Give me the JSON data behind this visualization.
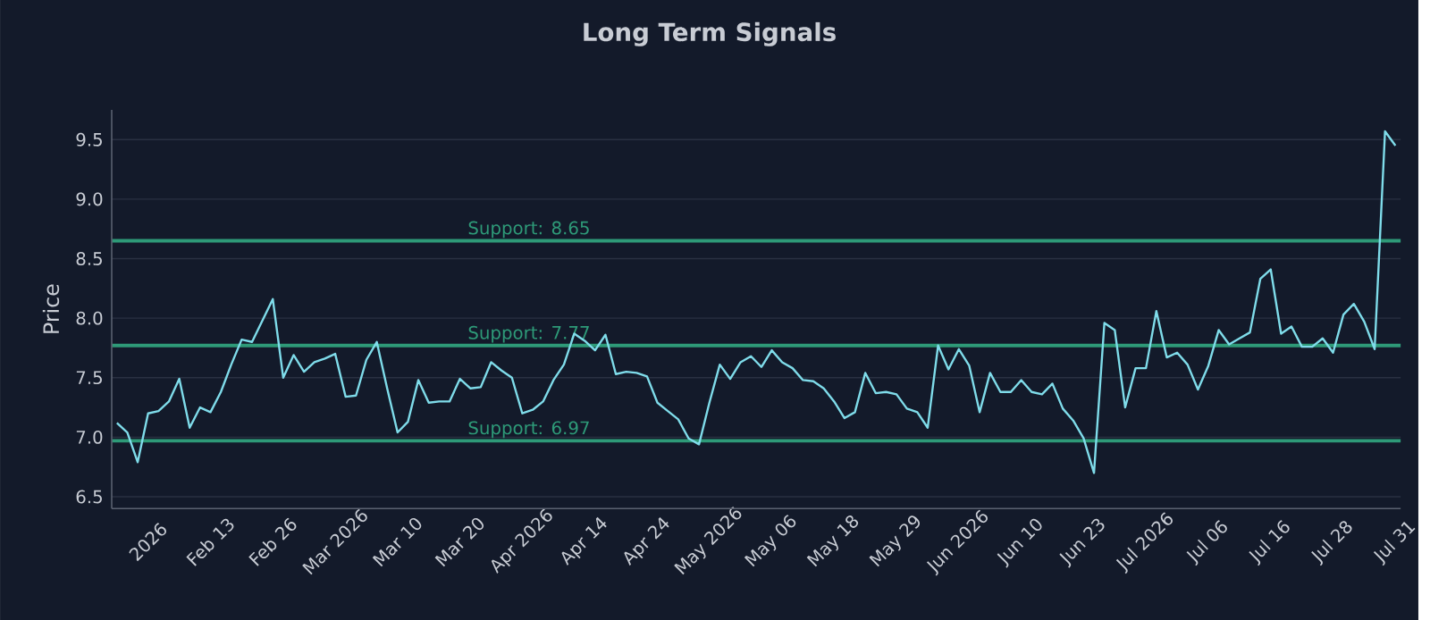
{
  "chart_data": {
    "type": "line",
    "title": "Long Term Signals",
    "ylabel": "Price",
    "categories": [
      null,
      null,
      null,
      "2026",
      null,
      null,
      null,
      null,
      null,
      "Feb 13",
      null,
      null,
      null,
      null,
      null,
      "Feb 26",
      null,
      null,
      null,
      null,
      null,
      "Mar 2026",
      null,
      null,
      null,
      null,
      null,
      "Mar 10",
      null,
      null,
      null,
      null,
      null,
      "Mar 20",
      null,
      null,
      null,
      null,
      null,
      "Apr 2026",
      null,
      null,
      null,
      null,
      null,
      "Apr 14",
      null,
      null,
      null,
      null,
      null,
      "Apr 24",
      null,
      null,
      null,
      null,
      null,
      "May 2026",
      null,
      null,
      null,
      null,
      null,
      "May 06",
      null,
      null,
      null,
      null,
      null,
      "May 18",
      null,
      null,
      null,
      null,
      null,
      "May 29",
      null,
      null,
      null,
      null,
      null,
      "Jun 2026",
      null,
      null,
      null,
      null,
      null,
      "Jun 10",
      null,
      null,
      null,
      null,
      null,
      "Jun 23",
      null,
      null,
      null,
      null,
      null,
      "Jul 2026",
      null,
      null,
      null,
      null,
      null,
      "Jul 06",
      null,
      null,
      null,
      null,
      null,
      "Jul 16",
      null,
      null,
      null,
      null,
      null,
      "Jul 28",
      null,
      null,
      null,
      null,
      null,
      "Jul 31"
    ],
    "series": [
      {
        "color": "#7fdcea",
        "values": [
          7.12,
          7.04,
          6.79,
          7.2,
          7.22,
          7.3,
          7.49,
          7.08,
          7.25,
          7.21,
          7.38,
          7.61,
          7.82,
          7.8,
          7.98,
          8.16,
          7.5,
          7.69,
          7.55,
          7.63,
          7.66,
          7.7,
          7.34,
          7.35,
          7.65,
          7.8,
          7.41,
          7.04,
          7.13,
          7.48,
          7.29,
          7.3,
          7.3,
          7.49,
          7.41,
          7.42,
          7.63,
          7.56,
          7.5,
          7.2,
          7.23,
          7.3,
          7.48,
          7.61,
          7.87,
          7.81,
          7.73,
          7.86,
          7.53,
          7.55,
          7.54,
          7.51,
          7.29,
          7.22,
          7.15,
          6.99,
          6.94,
          7.29,
          7.61,
          7.49,
          7.63,
          7.68,
          7.59,
          7.73,
          7.63,
          7.58,
          7.48,
          7.47,
          7.41,
          7.3,
          7.16,
          7.21,
          7.54,
          7.37,
          7.38,
          7.36,
          7.24,
          7.21,
          7.08,
          7.77,
          7.57,
          7.74,
          7.6,
          7.21,
          7.54,
          7.38,
          7.38,
          7.48,
          7.38,
          7.36,
          7.45,
          7.24,
          7.14,
          6.99,
          6.7,
          7.96,
          7.9,
          7.25,
          7.58,
          7.58,
          8.06,
          7.67,
          7.71,
          7.61,
          7.4,
          7.6,
          7.9,
          7.78,
          7.83,
          7.88,
          8.33,
          8.41,
          7.87,
          7.93,
          7.76,
          7.76,
          7.83,
          7.71,
          8.03,
          8.12,
          7.97,
          7.74,
          9.57,
          9.45
        ]
      }
    ],
    "ylim": [
      6.4,
      9.75
    ],
    "yticks": [
      6.5,
      {
        "value": 7,
        "label": "7.0"
      },
      7.5,
      {
        "value": 8,
        "label": "8.0"
      },
      8.5,
      {
        "value": 9,
        "label": "9.0"
      },
      9.5
    ],
    "grid": "y",
    "ref_lines": [
      {
        "axis": "y",
        "value": 8.65,
        "label": "Support: 8.65",
        "color": "#2e9a78"
      },
      {
        "axis": "y",
        "value": 7.77,
        "label": "Support: 7.77",
        "color": "#2e9a78"
      },
      {
        "axis": "y",
        "value": 6.97,
        "label": "Support: 6.97",
        "color": "#2e9a78"
      }
    ]
  }
}
